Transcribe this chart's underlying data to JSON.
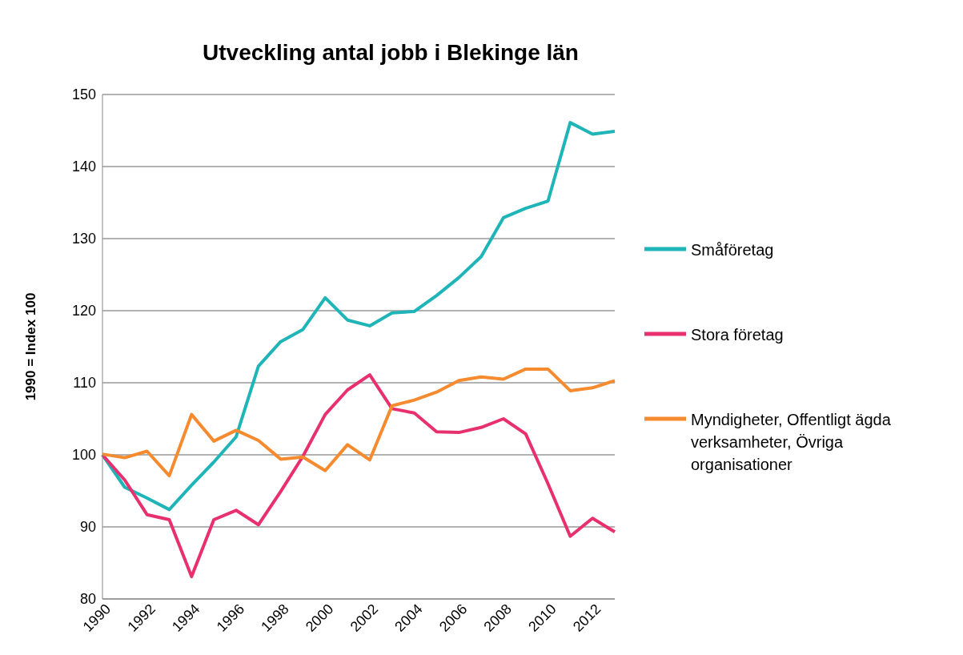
{
  "chart_data": {
    "type": "line",
    "title": "Utveckling antal jobb i Blekinge län",
    "ylabel": "1990 = Index 100",
    "categories": [
      "1990",
      null,
      "1992",
      null,
      "1994",
      null,
      "1996",
      null,
      "1998",
      null,
      "2000",
      null,
      "2002",
      null,
      "2004",
      null,
      "2006",
      null,
      "2008",
      null,
      "2010",
      null,
      "2012",
      null
    ],
    "series": [
      {
        "name": "Småföretag",
        "color": "#1fb5b8",
        "values": [
          100,
          95.5,
          94,
          92.4,
          95.8,
          99,
          102.5,
          112.3,
          115.7,
          117.4,
          121.8,
          118.7,
          117.9,
          119.7,
          119.9,
          122.1,
          124.6,
          127.5,
          132.9,
          134.2,
          135.2,
          146.1,
          144.5,
          144.9
        ]
      },
      {
        "name": "Stora företag",
        "color": "#e8306e",
        "values": [
          100,
          96.5,
          91.7,
          91,
          83.1,
          91,
          92.3,
          90.3,
          94.9,
          99.8,
          105.6,
          109,
          111.1,
          106.4,
          105.8,
          103.2,
          103.1,
          103.8,
          105,
          102.9,
          96,
          88.7,
          91.2,
          89.3
        ]
      },
      {
        "name": "Myndigheter, Offentligt ägda verksamheter, Övriga organisationer",
        "color": "#f58a2e",
        "values": [
          100.1,
          99.6,
          100.5,
          97.1,
          105.6,
          101.9,
          103.4,
          102,
          99.4,
          99.7,
          97.8,
          101.4,
          99.3,
          106.8,
          107.6,
          108.7,
          110.3,
          110.8,
          110.5,
          111.9,
          111.9,
          108.9,
          109.3,
          110.3
        ]
      }
    ],
    "ylim": [
      80,
      150
    ],
    "yticks": [
      80,
      90,
      100,
      110,
      120,
      130,
      140,
      150
    ],
    "grid": "y",
    "legend": "right",
    "marker": "none",
    "line_style": "solid"
  }
}
